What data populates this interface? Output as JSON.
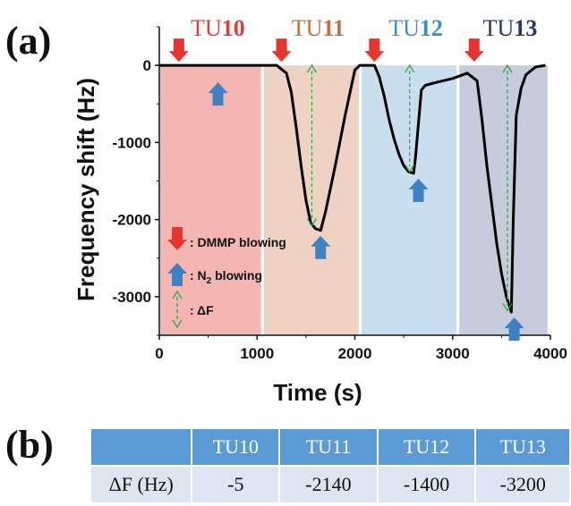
{
  "panel_a_label": "(a)",
  "panel_b_label": "(b)",
  "chart_data": {
    "type": "line",
    "xlabel": "Time (s)",
    "ylabel": "Frequency shift (Hz)",
    "xlim": [
      0,
      4000
    ],
    "ylim": [
      -3500,
      500
    ],
    "xticks": [
      "0",
      "1000",
      "2000",
      "3000",
      "4000"
    ],
    "yticks": [
      "0",
      "-1000",
      "-2000",
      "-3000"
    ],
    "series": [
      {
        "x": [
          0,
          1000,
          1200,
          1300,
          1350,
          1400,
          1450,
          1500,
          1550,
          1600,
          1650,
          1700,
          1800,
          1900,
          2000,
          2050,
          2200,
          2250,
          2300,
          2350,
          2400,
          2450,
          2500,
          2550,
          2600,
          2620,
          2680,
          2720,
          2800,
          2900,
          3000,
          3150,
          3250,
          3300,
          3350,
          3400,
          3450,
          3500,
          3550,
          3600,
          3620,
          3650,
          3700,
          3750,
          3850,
          3950
        ],
        "y": [
          0,
          0,
          0,
          -100,
          -350,
          -800,
          -1300,
          -1750,
          -2050,
          -2120,
          -2140,
          -1900,
          -1300,
          -650,
          -60,
          0,
          0,
          -150,
          -400,
          -700,
          -950,
          -1150,
          -1300,
          -1380,
          -1400,
          -1200,
          -320,
          -260,
          -230,
          -200,
          -170,
          -100,
          -200,
          -700,
          -1300,
          -1800,
          -2300,
          -2700,
          -3000,
          -3200,
          -2000,
          -650,
          -300,
          -120,
          -20,
          0
        ]
      }
    ],
    "regions": [
      {
        "label": "TU10",
        "x0": 0,
        "x1": 1050,
        "color": "#f4b6b2",
        "label_color": "#e03a3a"
      },
      {
        "label": "TU11",
        "x0": 1050,
        "x1": 2050,
        "color": "#eed2c2",
        "label_color": "#c0703a"
      },
      {
        "label": "TU12",
        "x0": 2050,
        "x1": 3050,
        "color": "#c9deee",
        "label_color": "#3b8fd0"
      },
      {
        "label": "TU13",
        "x0": 3050,
        "x1": 3980,
        "color": "#c6ccdc",
        "label_color": "#2b3566"
      }
    ],
    "dmmp_arrows_x": [
      200,
      1250,
      2200,
      3220
    ],
    "n2_arrows": [
      {
        "x": 600,
        "y": -150
      },
      {
        "x": 1650,
        "y": -2140
      },
      {
        "x": 2650,
        "y": -1400
      },
      {
        "x": 3630,
        "y": -3200
      }
    ],
    "delta_f_arrows": [
      {
        "x": 1560,
        "y": -2080
      },
      {
        "x": 2560,
        "y": -1380
      },
      {
        "x": 3560,
        "y": -3180
      }
    ],
    "legend": [
      {
        "symbol": "red-down-arrow",
        "text": ": DMMP blowing"
      },
      {
        "symbol": "blue-up-arrow",
        "text": ": N",
        "sub": "2",
        "text_after": " blowing"
      },
      {
        "symbol": "green-dashed-double-arrow",
        "text": ": ΔF"
      }
    ],
    "legend_placement": "lower-left inside plot",
    "grid": false
  },
  "table": {
    "headers": [
      "",
      "TU10",
      "TU11",
      "TU12",
      "TU13"
    ],
    "row_label": "ΔF (Hz)",
    "values": [
      "-5",
      "-2140",
      "-1400",
      "-3200"
    ]
  }
}
